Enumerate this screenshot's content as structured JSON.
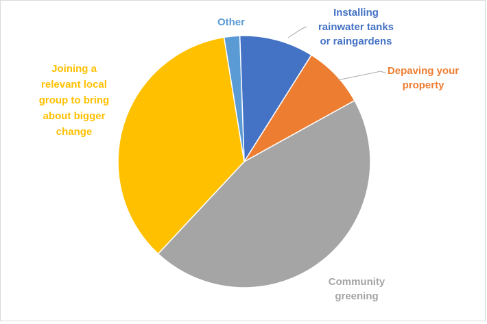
{
  "chart_data": {
    "type": "pie",
    "title": "",
    "unit": "%",
    "start_angle_deg": -2.0,
    "direction": "clockwise",
    "legend": "none",
    "labels_outside": true,
    "slices": [
      {
        "name": "Installing rainwater tanks or raingardens",
        "label_lines": [
          "Installing",
          "rainwater tanks",
          "or raingardens"
        ],
        "value": 9.5,
        "color": "#4472C4"
      },
      {
        "name": "Depaving your property",
        "label_lines": [
          "Depaving your",
          "property"
        ],
        "value": 8.0,
        "color": "#ED7D31"
      },
      {
        "name": "Community greening",
        "label_lines": [
          "Community",
          "greening"
        ],
        "value": 45.0,
        "color": "#A5A5A5"
      },
      {
        "name": "Joining a relevant local group to bring about bigger change",
        "label_lines": [
          "Joining a",
          "relevant local",
          "group to bring",
          "about bigger",
          "change"
        ],
        "value": 35.5,
        "color": "#FFC000"
      },
      {
        "name": "Other",
        "label_lines": [
          "Other"
        ],
        "value": 2.0,
        "color": "#5B9BD5"
      }
    ]
  }
}
